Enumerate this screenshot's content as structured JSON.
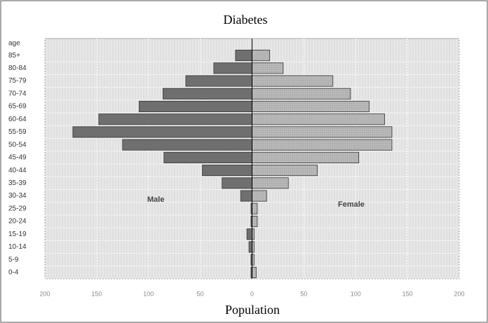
{
  "chart_data": {
    "type": "bar",
    "orientation": "horizontal",
    "title": "Diabetes",
    "x_label": "Population",
    "y_label": "age",
    "categories": [
      "85+",
      "80-84",
      "75-79",
      "70-74",
      "65-69",
      "60-64",
      "55-59",
      "50-54",
      "45-49",
      "40-44",
      "35-39",
      "30-34",
      "25-29",
      "20-24",
      "15-19",
      "10-14",
      "5-9",
      "0-4"
    ],
    "series": [
      {
        "name": "Male",
        "color": "#6f6f6f",
        "values": [
          -16,
          -37,
          -64,
          -86,
          -109,
          -148,
          -173,
          -125,
          -85,
          -48,
          -29,
          -11,
          -1,
          -1,
          -5,
          -3,
          -1,
          -1
        ]
      },
      {
        "name": "Female",
        "color": "#b4b4b4",
        "values": [
          17,
          30,
          78,
          95,
          113,
          128,
          135,
          135,
          103,
          63,
          35,
          14,
          5,
          5,
          2,
          2,
          2,
          4
        ]
      }
    ],
    "xlim": [
      -200,
      200
    ],
    "xticks": [
      {
        "value": -200,
        "label": "200"
      },
      {
        "value": -150,
        "label": "150"
      },
      {
        "value": -100,
        "label": "100"
      },
      {
        "value": -50,
        "label": "50"
      },
      0,
      50,
      100,
      150,
      200
    ],
    "grid": true
  }
}
